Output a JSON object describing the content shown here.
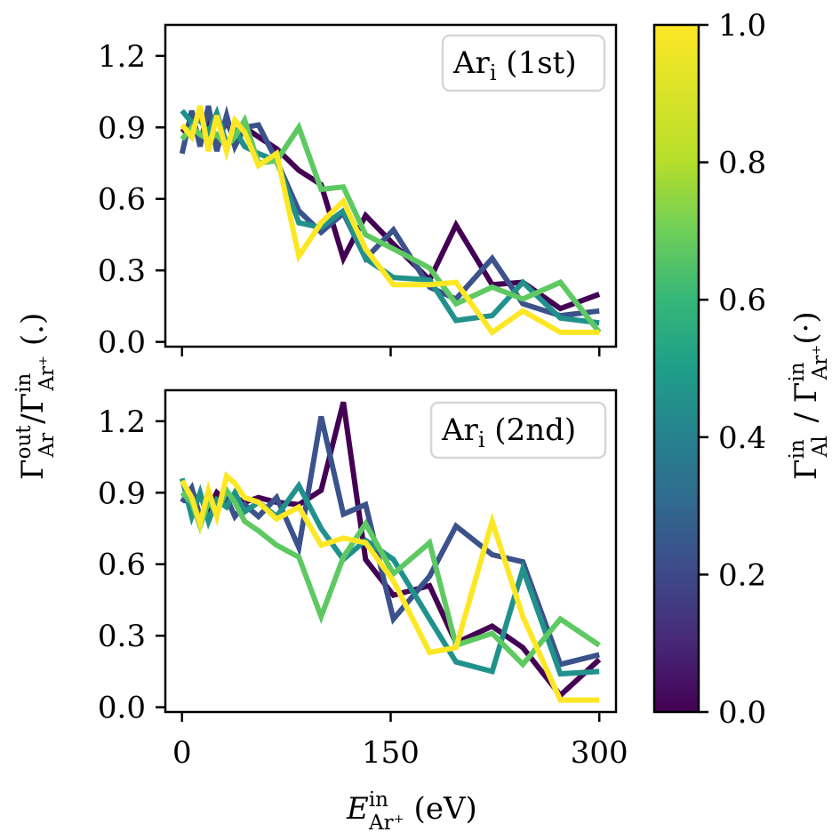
{
  "figure": {
    "xlabel": "E",
    "xlabel_sup": "in",
    "xlabel_sub": "Ar⁺",
    "xlabel_unit": " (eV)",
    "ylabel_main": "Γ",
    "ylabel_sup1": "out",
    "ylabel_sub1": "Ar",
    "ylabel_slash": "/Γ",
    "ylabel_sup2": "in",
    "ylabel_sub2": "Ar⁺",
    "ylabel_unit": " (.)",
    "colorbar_label_main": "Γ",
    "colorbar_label_sup1": "in",
    "colorbar_label_sub1": "Al",
    "colorbar_label_mid": " / Γ",
    "colorbar_label_sup2": "in",
    "colorbar_label_sub2": "Ar⁺",
    "colorbar_label_unit": "(·)",
    "colorbar_ticks": [
      "0.0",
      "0.2",
      "0.4",
      "0.6",
      "0.8",
      "1.0"
    ],
    "colorbar_range": [
      0,
      1
    ],
    "colormap": "viridis"
  },
  "chart_data": [
    {
      "type": "line",
      "legend_main": "Ar",
      "legend_sub": "i",
      "legend_suffix": " (1st)",
      "xlim": [
        -12,
        312
      ],
      "ylim": [
        -0.02,
        1.33
      ],
      "x_ticks": [
        0,
        150,
        300
      ],
      "x_tick_labels": [
        "",
        "",
        ""
      ],
      "y_ticks": [
        0.0,
        0.3,
        0.6,
        0.9,
        1.2
      ],
      "y_tick_labels": [
        "0.0",
        "0.3",
        "0.6",
        "0.9",
        "1.2"
      ],
      "x": [
        0,
        7,
        13,
        19,
        25,
        32,
        38,
        45,
        55,
        68,
        84,
        100,
        116,
        132,
        152,
        178,
        197,
        223,
        245,
        272,
        300
      ],
      "series": [
        {
          "color": "#440154",
          "values": [
            0.88,
            0.92,
            0.86,
            0.92,
            0.83,
            0.93,
            0.84,
            0.9,
            0.86,
            0.81,
            0.72,
            0.66,
            0.35,
            0.53,
            0.41,
            0.26,
            0.49,
            0.24,
            0.25,
            0.14,
            0.2
          ]
        },
        {
          "color": "#3b528b",
          "values": [
            0.79,
            0.97,
            0.82,
            0.99,
            0.8,
            0.95,
            0.82,
            0.9,
            0.91,
            0.76,
            0.55,
            0.46,
            0.54,
            0.35,
            0.47,
            0.23,
            0.18,
            0.35,
            0.16,
            0.11,
            0.13
          ]
        },
        {
          "color": "#21918c",
          "values": [
            0.97,
            0.92,
            0.93,
            0.88,
            0.96,
            0.83,
            0.89,
            0.82,
            0.79,
            0.76,
            0.5,
            0.48,
            0.55,
            0.35,
            0.27,
            0.26,
            0.09,
            0.11,
            0.25,
            0.1,
            0.08
          ]
        },
        {
          "color": "#5ec962",
          "values": [
            0.85,
            0.9,
            0.87,
            0.85,
            0.87,
            0.82,
            0.86,
            0.93,
            0.75,
            0.76,
            0.9,
            0.64,
            0.65,
            0.45,
            0.39,
            0.31,
            0.16,
            0.23,
            0.18,
            0.25,
            0.04
          ]
        },
        {
          "color": "#fde725",
          "values": [
            0.91,
            0.86,
            0.99,
            0.8,
            0.95,
            0.8,
            0.93,
            0.88,
            0.74,
            0.79,
            0.36,
            0.5,
            0.59,
            0.39,
            0.24,
            0.24,
            0.25,
            0.04,
            0.13,
            0.04,
            0.04
          ]
        }
      ]
    },
    {
      "type": "line",
      "legend_main": "Ar",
      "legend_sub": "i",
      "legend_suffix": " (2nd)",
      "xlim": [
        -12,
        312
      ],
      "ylim": [
        -0.02,
        1.33
      ],
      "x_ticks": [
        0,
        150,
        300
      ],
      "x_tick_labels": [
        "0",
        "150",
        "300"
      ],
      "y_ticks": [
        0.0,
        0.3,
        0.6,
        0.9,
        1.2
      ],
      "y_tick_labels": [
        "0.0",
        "0.3",
        "0.6",
        "0.9",
        "1.2"
      ],
      "x": [
        0,
        7,
        13,
        19,
        25,
        32,
        38,
        45,
        55,
        68,
        84,
        100,
        116,
        132,
        152,
        178,
        197,
        223,
        245,
        272,
        300
      ],
      "series": [
        {
          "color": "#440154",
          "values": [
            0.88,
            0.85,
            0.88,
            0.83,
            0.9,
            0.86,
            0.88,
            0.86,
            0.88,
            0.86,
            0.85,
            0.91,
            1.28,
            0.62,
            0.47,
            0.51,
            0.27,
            0.34,
            0.25,
            0.05,
            0.2
          ]
        },
        {
          "color": "#3b528b",
          "values": [
            0.86,
            0.92,
            0.8,
            0.86,
            0.83,
            0.88,
            0.8,
            0.85,
            0.8,
            0.88,
            0.67,
            1.22,
            0.81,
            0.85,
            0.37,
            0.55,
            0.76,
            0.64,
            0.61,
            0.18,
            0.22
          ]
        },
        {
          "color": "#21918c",
          "values": [
            0.96,
            0.8,
            0.9,
            0.78,
            0.87,
            0.84,
            0.9,
            0.82,
            0.86,
            0.8,
            0.93,
            0.75,
            0.62,
            0.7,
            0.62,
            0.37,
            0.19,
            0.15,
            0.58,
            0.14,
            0.15
          ]
        },
        {
          "color": "#5ec962",
          "values": [
            0.9,
            0.86,
            0.76,
            0.86,
            0.82,
            0.91,
            0.86,
            0.78,
            0.74,
            0.68,
            0.63,
            0.38,
            0.63,
            0.77,
            0.56,
            0.69,
            0.26,
            0.31,
            0.18,
            0.37,
            0.26
          ]
        },
        {
          "color": "#fde725",
          "values": [
            0.95,
            0.88,
            0.77,
            0.91,
            0.8,
            0.97,
            0.94,
            0.88,
            0.86,
            0.79,
            0.84,
            0.68,
            0.71,
            0.69,
            0.53,
            0.23,
            0.25,
            0.78,
            0.38,
            0.03,
            0.03
          ]
        }
      ]
    }
  ]
}
